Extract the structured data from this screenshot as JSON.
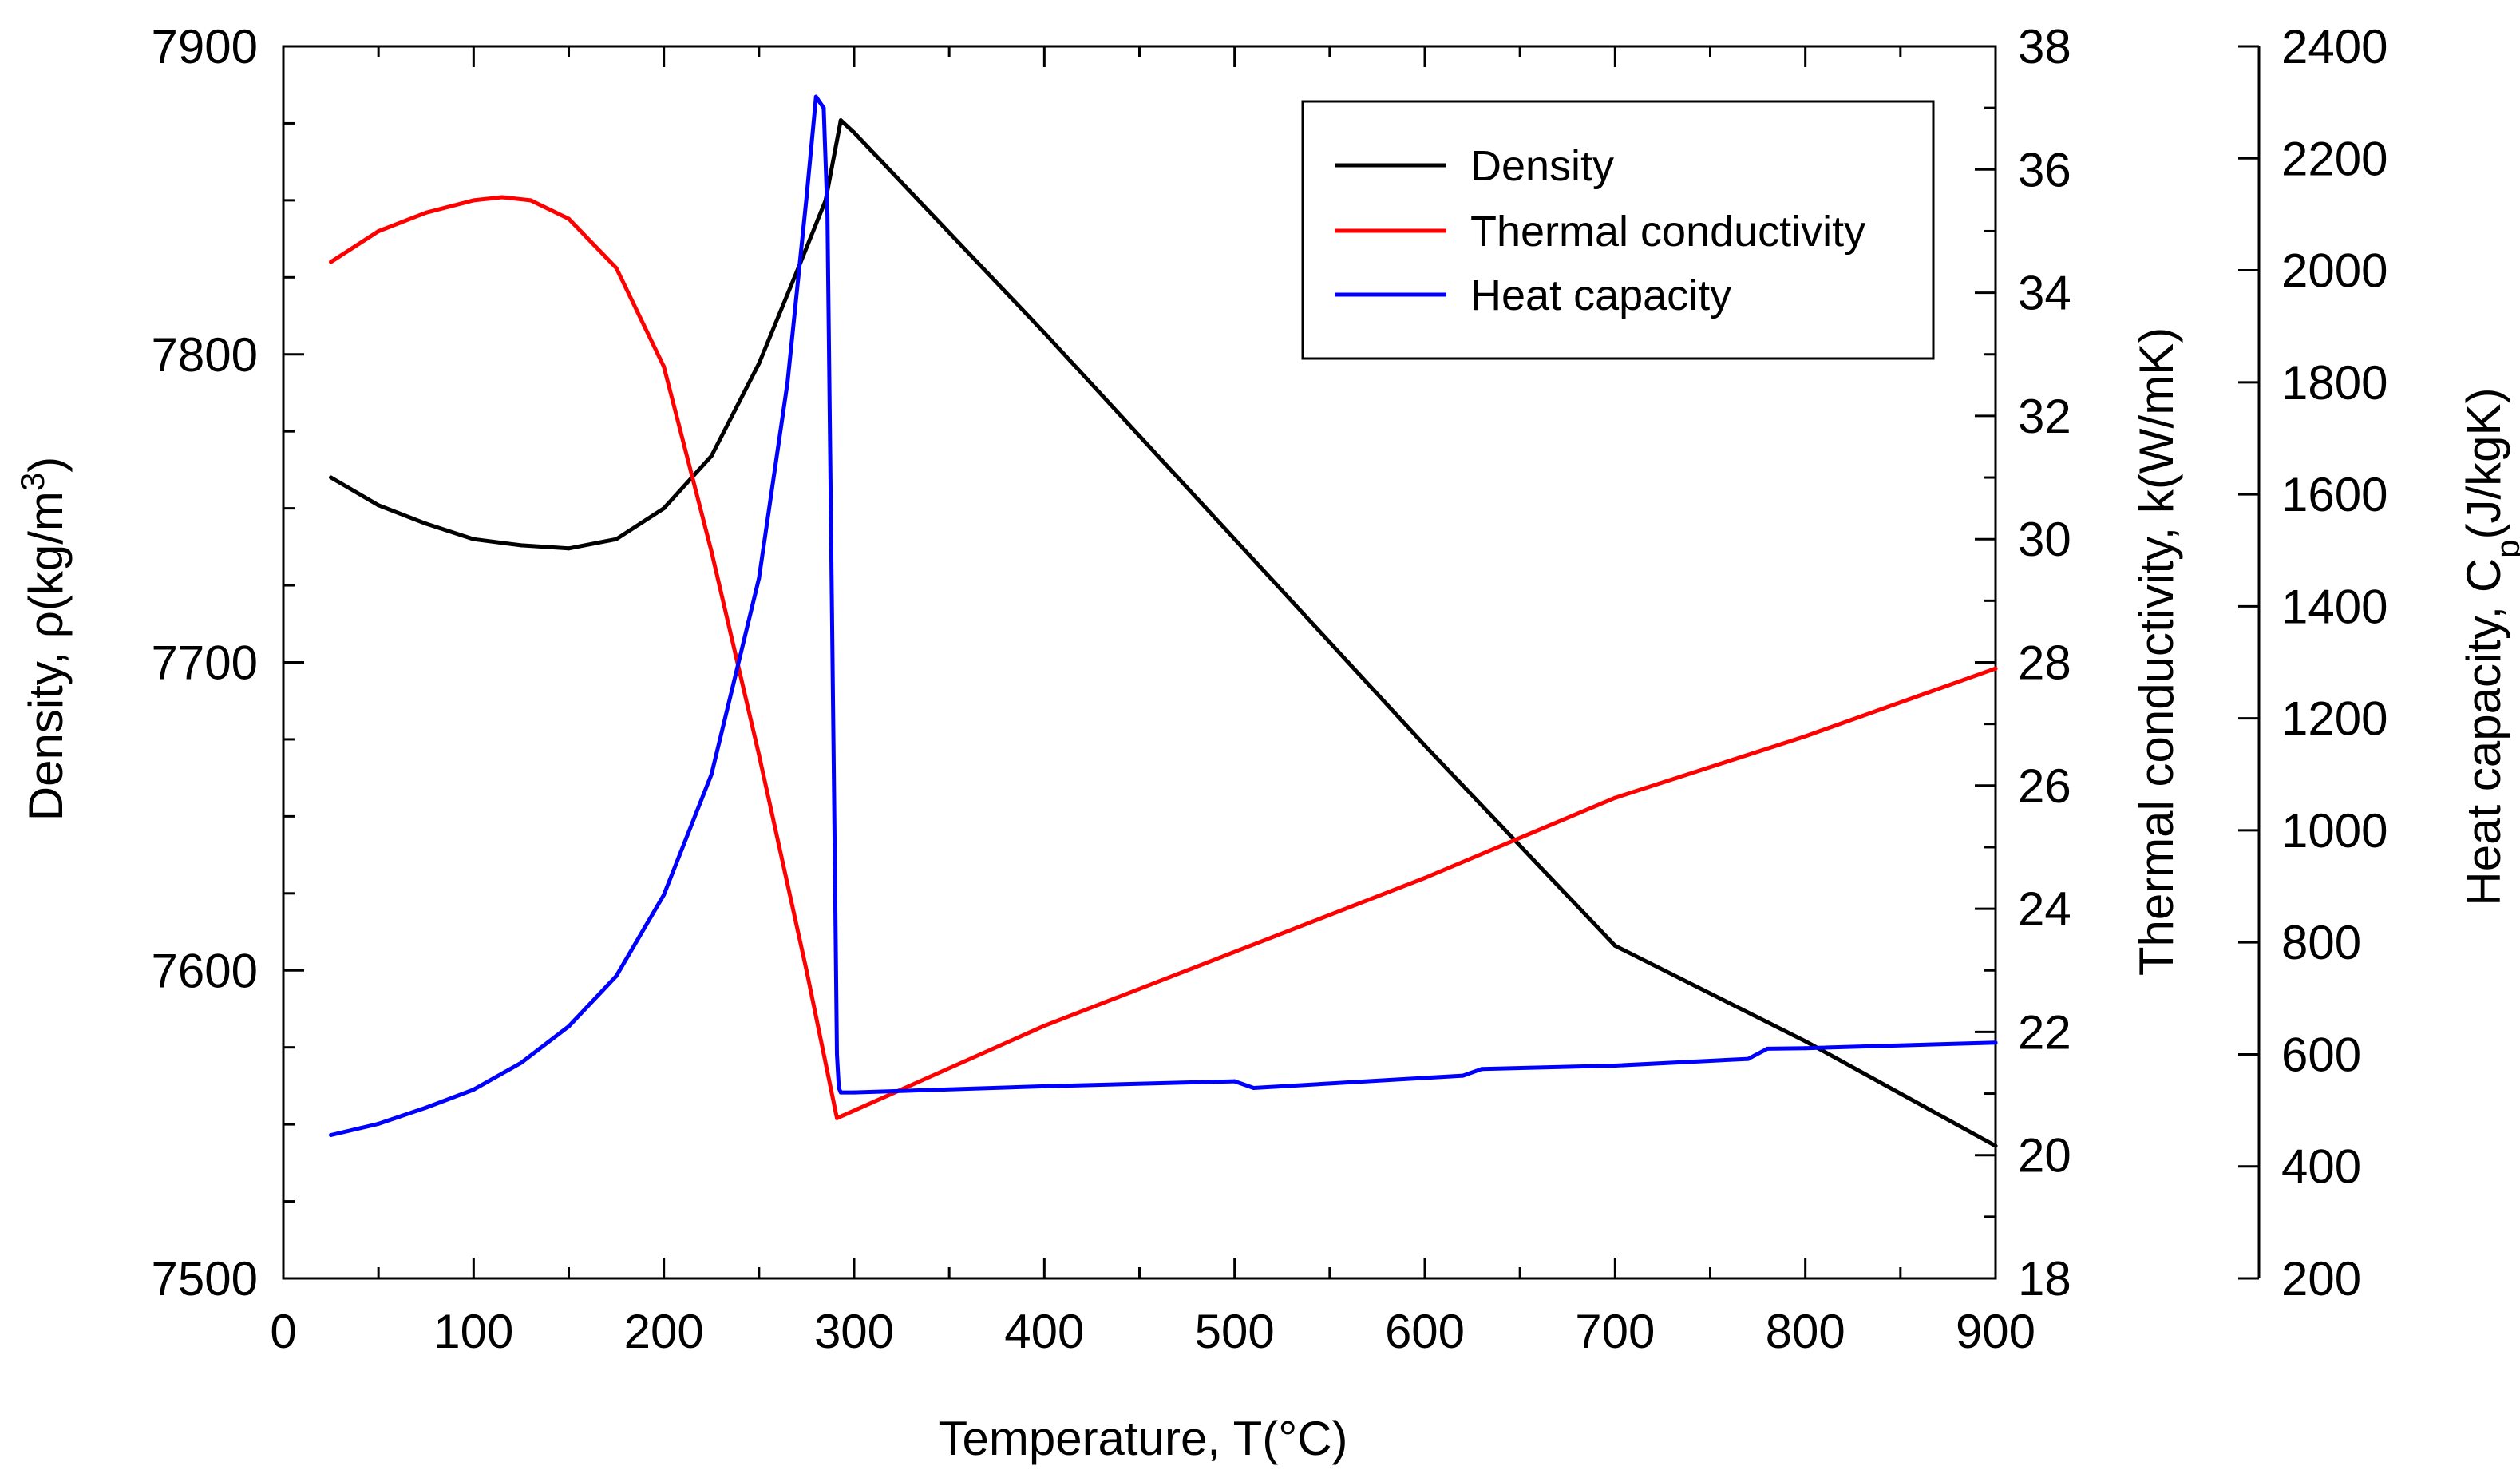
{
  "chart_data": {
    "type": "line",
    "title": "",
    "xlabel": "Temperature, T(°C)",
    "xlim": [
      0,
      900
    ],
    "x_ticks": [
      "0",
      "100",
      "200",
      "300",
      "400",
      "500",
      "600",
      "700",
      "800",
      "900"
    ],
    "x_tick_values": [
      0,
      100,
      200,
      300,
      400,
      500,
      600,
      700,
      800,
      900
    ],
    "grid": false,
    "legend_position": "top-right",
    "axes": [
      {
        "id": "density",
        "side": "left",
        "label_main": "Density, ρ(kg/m",
        "label_sup": "3",
        "label_end": ")",
        "ylim": [
          7500,
          7900
        ],
        "ticks": [
          "7500",
          "7600",
          "7700",
          "7800",
          "7900"
        ],
        "tick_values": [
          7500,
          7600,
          7700,
          7800,
          7900
        ]
      },
      {
        "id": "conductivity",
        "side": "right",
        "label": "Thermal conductivity, k(W/mK)",
        "ylim": [
          18,
          38
        ],
        "ticks": [
          "18",
          "20",
          "22",
          "24",
          "26",
          "28",
          "30",
          "32",
          "34",
          "36",
          "38"
        ],
        "tick_values": [
          18,
          20,
          22,
          24,
          26,
          28,
          30,
          32,
          34,
          36,
          38
        ]
      },
      {
        "id": "capacity",
        "side": "far-right",
        "label_main": "Heat capacity, C",
        "label_sub": "p",
        "label_end": "(J/kgK)",
        "ylim": [
          200,
          2400
        ],
        "ticks": [
          "200",
          "400",
          "600",
          "800",
          "1000",
          "1200",
          "1400",
          "1600",
          "1800",
          "2000",
          "2200",
          "2400"
        ],
        "tick_values": [
          200,
          400,
          600,
          800,
          1000,
          1200,
          1400,
          1600,
          1800,
          2000,
          2200,
          2400
        ]
      }
    ],
    "series": [
      {
        "name": "Density",
        "axis": "density",
        "color": "#000000",
        "x": [
          25,
          50,
          75,
          100,
          125,
          150,
          175,
          200,
          225,
          250,
          270,
          285,
          293,
          300,
          400,
          500,
          600,
          700,
          800,
          900
        ],
        "y": [
          7760,
          7751,
          7745,
          7740,
          7738,
          7737,
          7740,
          7750,
          7767,
          7797,
          7827,
          7850,
          7876,
          7872,
          7807,
          7740,
          7673,
          7608,
          7577,
          7543
        ]
      },
      {
        "name": "Thermal conductivity",
        "axis": "conductivity",
        "color": "#ff0000",
        "x": [
          25,
          50,
          75,
          100,
          115,
          130,
          150,
          175,
          200,
          225,
          250,
          275,
          291,
          400,
          500,
          600,
          700,
          800,
          900
        ],
        "y": [
          34.5,
          35.0,
          35.3,
          35.5,
          35.55,
          35.5,
          35.2,
          34.4,
          32.8,
          29.8,
          26.5,
          23.0,
          20.6,
          22.1,
          23.3,
          24.5,
          25.8,
          26.8,
          27.9
        ]
      },
      {
        "name": "Heat capacity",
        "axis": "capacity",
        "color": "#0000ff",
        "x": [
          25,
          50,
          75,
          100,
          125,
          150,
          175,
          200,
          225,
          250,
          265,
          275,
          280,
          284,
          286,
          290,
          291,
          292,
          293,
          300,
          400,
          500,
          510,
          620,
          630,
          700,
          770,
          780,
          800,
          900
        ],
        "y": [
          456,
          476,
          505,
          537,
          585,
          650,
          740,
          885,
          1100,
          1450,
          1800,
          2130,
          2310,
          2290,
          2100,
          900,
          600,
          540,
          532,
          532,
          543,
          552,
          540,
          562,
          574,
          580,
          592,
          610,
          611,
          621
        ]
      }
    ]
  }
}
